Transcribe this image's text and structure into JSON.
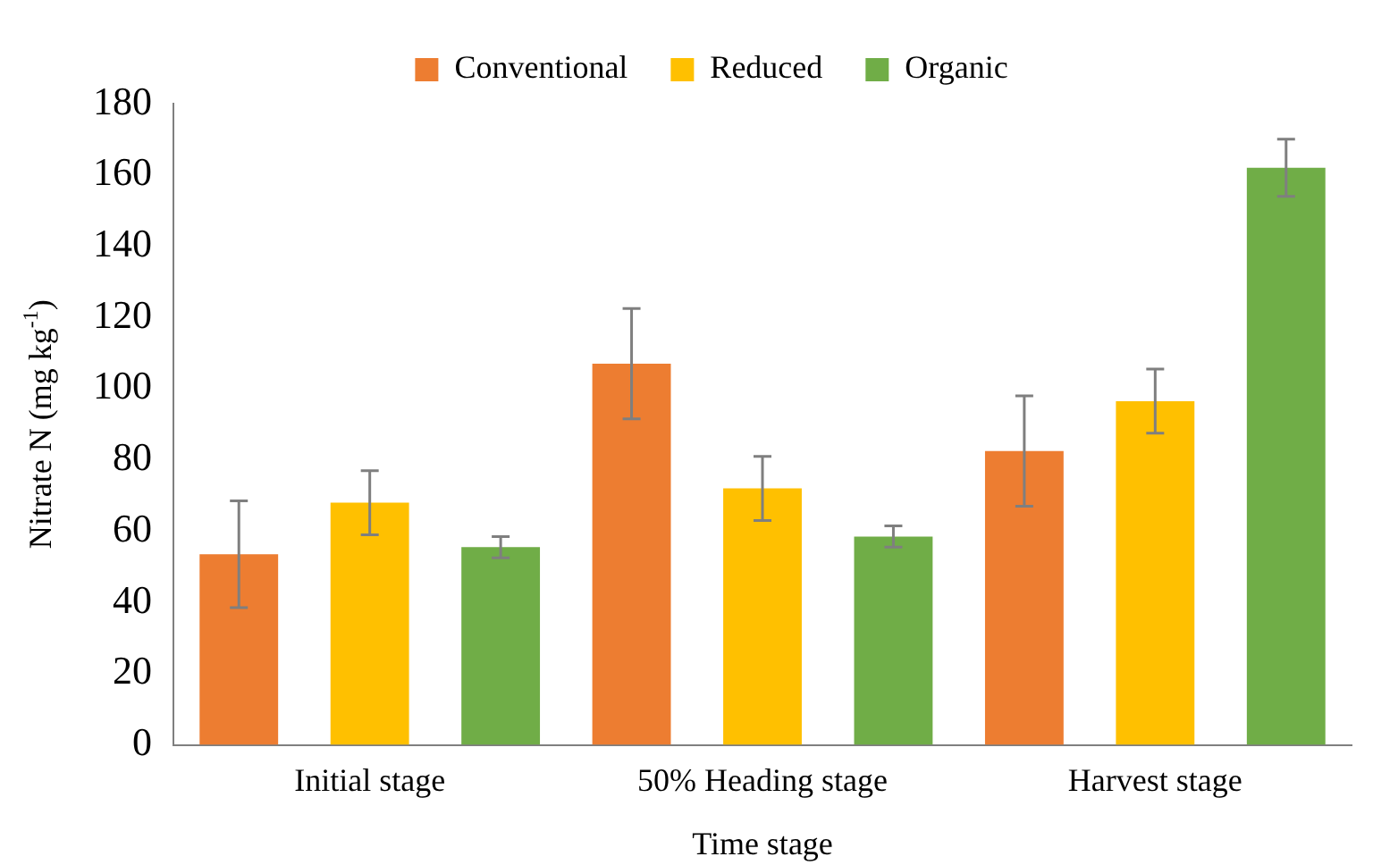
{
  "chart_data": {
    "type": "bar",
    "xlabel": "Time stage",
    "ylabel": "Nitrate N (mg kg$^{-1}$)",
    "categories": [
      "Initial stage",
      "50% Heading stage",
      "Harvest stage"
    ],
    "series": [
      {
        "name": "Conventional",
        "color": "#ed7d31",
        "values": [
          53.5,
          107,
          82.5
        ],
        "errors": [
          15,
          15.5,
          15.5
        ]
      },
      {
        "name": "Reduced",
        "color": "#ffc000",
        "values": [
          68,
          72,
          96.5
        ],
        "errors": [
          9,
          9,
          9
        ]
      },
      {
        "name": "Organic",
        "color": "#70ad47",
        "values": [
          55.5,
          58.5,
          162
        ],
        "errors": [
          3,
          3,
          8
        ]
      }
    ],
    "ylim": [
      0,
      180
    ],
    "yticks": [
      0,
      20,
      40,
      60,
      80,
      100,
      120,
      140,
      160,
      180
    ],
    "grid": false,
    "legend": "top"
  }
}
